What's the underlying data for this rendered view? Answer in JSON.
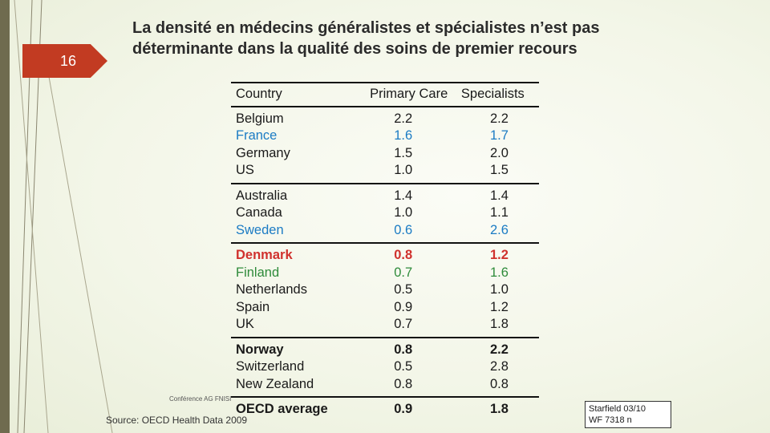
{
  "slide_number": "16",
  "title": "La densité en médecins généralistes et spécialistes n’est pas déterminante dans la qualité des soins de premier recours",
  "colors": {
    "accent_red": "#c23b22",
    "blue": "#1b7bc4",
    "red": "#d0312d",
    "green": "#2e8b3a"
  },
  "table": {
    "headers": {
      "country": "Country",
      "primary_care": "Primary Care",
      "specialists": "Specialists"
    },
    "groups": [
      {
        "countries": [
          "Belgium",
          "France",
          "Germany",
          "US"
        ],
        "primary_care": [
          "2.2",
          "1.6",
          "1.5",
          "1.0"
        ],
        "specialists": [
          "2.2",
          "1.7",
          "2.0",
          "1.5"
        ]
      },
      {
        "countries": [
          "Australia",
          "Canada",
          "Sweden"
        ],
        "primary_care": [
          "1.4",
          "1.0",
          "0.6"
        ],
        "specialists": [
          "1.4",
          "1.1",
          "2.6"
        ]
      },
      {
        "countries": [
          "Denmark",
          "Finland",
          "Netherlands",
          "Spain",
          "UK"
        ],
        "primary_care": [
          "0.8",
          "0.7",
          "0.5",
          "0.9",
          "0.7"
        ],
        "specialists": [
          "1.2",
          "1.6",
          "1.0",
          "1.2",
          "1.8"
        ]
      },
      {
        "countries": [
          "Norway",
          "Switzerland",
          "New Zealand"
        ],
        "primary_care": [
          "0.8",
          "0.5",
          "0.8"
        ],
        "specialists": [
          "2.2",
          "2.8",
          "0.8"
        ]
      }
    ],
    "average": {
      "country": "OECD average",
      "primary_care": "0.9",
      "specialists": "1.8"
    }
  },
  "conference_note": "Conférence AG FNISI",
  "source": "Source: OECD Health Data 2009",
  "starfield_note": {
    "line1": "Starfield 03/10",
    "line2": "WF 7318 n"
  }
}
